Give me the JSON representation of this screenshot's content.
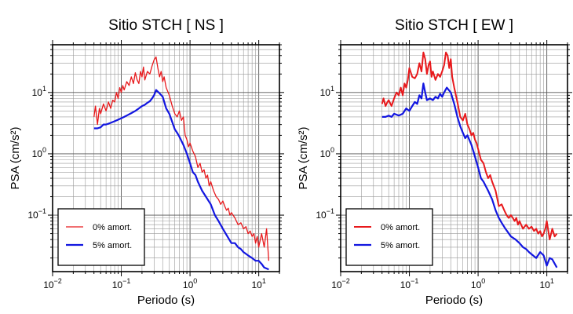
{
  "chart_data": [
    {
      "type": "line",
      "title": "Sitio STCH [ NS ]",
      "xlabel": "Periodo (s)",
      "ylabel": "PSA (cm/s²)",
      "xscale": "log",
      "yscale": "log",
      "xlim": [
        0.01,
        20
      ],
      "ylim": [
        0.012,
        60
      ],
      "grid": true,
      "legend_position": "bottom-left",
      "xticks": [
        {
          "value": 0.01,
          "base": "10",
          "exp": "−2"
        },
        {
          "value": 0.1,
          "base": "10",
          "exp": "−1"
        },
        {
          "value": 1,
          "base": "10",
          "exp": "0"
        },
        {
          "value": 10,
          "base": "10",
          "exp": "1"
        }
      ],
      "yticks": [
        {
          "value": 0.1,
          "base": "10",
          "exp": "−1"
        },
        {
          "value": 1,
          "base": "10",
          "exp": "0"
        },
        {
          "value": 10,
          "base": "10",
          "exp": "1"
        }
      ],
      "series": [
        {
          "name": "0% amort.",
          "color": "#e8191c",
          "width": 1.3,
          "x": [
            0.04,
            0.042,
            0.045,
            0.048,
            0.05,
            0.055,
            0.06,
            0.065,
            0.07,
            0.075,
            0.08,
            0.085,
            0.09,
            0.095,
            0.1,
            0.105,
            0.11,
            0.12,
            0.13,
            0.14,
            0.15,
            0.16,
            0.17,
            0.18,
            0.19,
            0.2,
            0.21,
            0.22,
            0.24,
            0.26,
            0.28,
            0.3,
            0.32,
            0.34,
            0.36,
            0.38,
            0.4,
            0.42,
            0.45,
            0.5,
            0.55,
            0.6,
            0.65,
            0.7,
            0.75,
            0.8,
            0.85,
            0.9,
            0.95,
            1.0,
            1.1,
            1.2,
            1.3,
            1.4,
            1.5,
            1.6,
            1.7,
            1.8,
            1.9,
            2.0,
            2.2,
            2.4,
            2.6,
            2.8,
            3.0,
            3.2,
            3.4,
            3.6,
            3.8,
            4.0,
            4.5,
            5.0,
            5.5,
            6.0,
            6.5,
            7.0,
            7.5,
            8.0,
            8.5,
            9.0,
            9.5,
            10.0,
            11.0,
            12.0,
            13.0,
            14.0
          ],
          "y": [
            4.0,
            6.0,
            3.0,
            5.5,
            4.5,
            6.5,
            5.0,
            7.0,
            5.5,
            7.5,
            7.0,
            10.0,
            8.0,
            12.0,
            10.0,
            13.0,
            11.0,
            15.0,
            13.0,
            18.0,
            14.0,
            21.0,
            16.0,
            14.0,
            22.0,
            18.0,
            26.0,
            16.0,
            22.0,
            20.0,
            27.0,
            34.0,
            38.0,
            25.0,
            18.0,
            22.0,
            15.0,
            18.0,
            12.0,
            9.0,
            6.0,
            4.5,
            4.0,
            5.0,
            3.5,
            4.0,
            2.0,
            1.7,
            1.3,
            1.5,
            1.1,
            0.9,
            0.6,
            0.7,
            0.5,
            0.55,
            0.4,
            0.45,
            0.3,
            0.35,
            0.25,
            0.2,
            0.18,
            0.15,
            0.17,
            0.14,
            0.12,
            0.13,
            0.1,
            0.11,
            0.09,
            0.07,
            0.075,
            0.06,
            0.065,
            0.05,
            0.055,
            0.045,
            0.05,
            0.035,
            0.045,
            0.03,
            0.05,
            0.03,
            0.06,
            0.018
          ]
        },
        {
          "name": "5% amort.",
          "color": "#1216e0",
          "width": 2.2,
          "x": [
            0.04,
            0.045,
            0.05,
            0.055,
            0.06,
            0.07,
            0.08,
            0.09,
            0.1,
            0.11,
            0.12,
            0.14,
            0.16,
            0.18,
            0.2,
            0.22,
            0.24,
            0.26,
            0.28,
            0.3,
            0.32,
            0.35,
            0.4,
            0.45,
            0.5,
            0.55,
            0.6,
            0.65,
            0.7,
            0.8,
            0.9,
            1.0,
            1.1,
            1.2,
            1.3,
            1.5,
            1.7,
            2.0,
            2.3,
            2.6,
            3.0,
            3.5,
            4.0,
            4.5,
            5.0,
            5.5,
            6.0,
            7.0,
            8.0,
            9.0,
            10.0,
            11.0,
            12.0,
            14.0
          ],
          "y": [
            2.6,
            2.6,
            2.7,
            3.0,
            3.0,
            3.2,
            3.4,
            3.6,
            3.8,
            4.0,
            4.2,
            4.6,
            5.0,
            5.5,
            6.0,
            6.3,
            6.8,
            7.2,
            8.0,
            9.0,
            11.0,
            10.0,
            8.5,
            5.5,
            4.5,
            3.3,
            2.5,
            2.2,
            1.9,
            1.4,
            1.0,
            0.7,
            0.5,
            0.45,
            0.35,
            0.25,
            0.2,
            0.15,
            0.1,
            0.08,
            0.06,
            0.045,
            0.035,
            0.035,
            0.03,
            0.028,
            0.025,
            0.022,
            0.02,
            0.018,
            0.018,
            0.016,
            0.014,
            0.013
          ]
        }
      ]
    },
    {
      "type": "line",
      "title": "Sitio STCH [ EW ]",
      "xlabel": "Periodo (s)",
      "ylabel": "PSA (cm/s²)",
      "xscale": "log",
      "yscale": "log",
      "xlim": [
        0.01,
        20
      ],
      "ylim": [
        0.012,
        60
      ],
      "grid": true,
      "legend_position": "bottom-left",
      "xticks": [
        {
          "value": 0.01,
          "base": "10",
          "exp": "−2"
        },
        {
          "value": 0.1,
          "base": "10",
          "exp": "−1"
        },
        {
          "value": 1,
          "base": "10",
          "exp": "0"
        },
        {
          "value": 10,
          "base": "10",
          "exp": "1"
        }
      ],
      "yticks": [
        {
          "value": 0.1,
          "base": "10",
          "exp": "−1"
        },
        {
          "value": 1,
          "base": "10",
          "exp": "0"
        },
        {
          "value": 10,
          "base": "10",
          "exp": "1"
        }
      ],
      "series": [
        {
          "name": "0% amort.",
          "color": "#e8191c",
          "width": 2.0,
          "x": [
            0.04,
            0.042,
            0.045,
            0.048,
            0.05,
            0.055,
            0.06,
            0.065,
            0.07,
            0.075,
            0.08,
            0.085,
            0.09,
            0.095,
            0.1,
            0.11,
            0.12,
            0.13,
            0.14,
            0.15,
            0.16,
            0.17,
            0.18,
            0.19,
            0.2,
            0.21,
            0.22,
            0.24,
            0.26,
            0.28,
            0.3,
            0.32,
            0.34,
            0.36,
            0.38,
            0.4,
            0.42,
            0.45,
            0.5,
            0.55,
            0.6,
            0.65,
            0.7,
            0.75,
            0.8,
            0.85,
            0.9,
            0.95,
            1.0,
            1.1,
            1.2,
            1.3,
            1.4,
            1.5,
            1.6,
            1.8,
            2.0,
            2.2,
            2.4,
            2.6,
            2.8,
            3.0,
            3.2,
            3.4,
            3.6,
            3.8,
            4.0,
            4.5,
            5.0,
            5.5,
            6.0,
            6.5,
            7.0,
            7.5,
            8.0,
            8.5,
            9.0,
            9.5,
            10.0,
            11.0,
            12.0,
            13.0,
            14.0
          ],
          "y": [
            6.5,
            8.0,
            6.0,
            7.0,
            7.5,
            6.0,
            8.0,
            10.0,
            9.0,
            12.0,
            9.0,
            14.0,
            12.0,
            16.0,
            25.0,
            18.0,
            17.0,
            20.0,
            30.0,
            22.0,
            45.0,
            35.0,
            20.0,
            28.0,
            32.0,
            18.0,
            22.0,
            16.0,
            20.0,
            18.0,
            22.0,
            28.0,
            45.0,
            40.0,
            25.0,
            35.0,
            18.0,
            12.0,
            7.0,
            4.0,
            3.5,
            4.5,
            3.0,
            2.5,
            2.0,
            2.2,
            1.7,
            1.5,
            1.2,
            0.8,
            0.7,
            0.5,
            0.4,
            0.45,
            0.35,
            0.25,
            0.14,
            0.15,
            0.12,
            0.1,
            0.09,
            0.1,
            0.09,
            0.08,
            0.09,
            0.07,
            0.08,
            0.06,
            0.07,
            0.06,
            0.065,
            0.055,
            0.06,
            0.05,
            0.055,
            0.045,
            0.05,
            0.06,
            0.08,
            0.04,
            0.06,
            0.045,
            0.05
          ]
        },
        {
          "name": "5% amort.",
          "color": "#1216e0",
          "width": 2.2,
          "x": [
            0.04,
            0.045,
            0.05,
            0.055,
            0.06,
            0.07,
            0.08,
            0.09,
            0.1,
            0.11,
            0.12,
            0.13,
            0.14,
            0.15,
            0.16,
            0.17,
            0.18,
            0.2,
            0.22,
            0.24,
            0.26,
            0.28,
            0.3,
            0.32,
            0.35,
            0.4,
            0.45,
            0.5,
            0.55,
            0.6,
            0.65,
            0.7,
            0.8,
            0.9,
            1.0,
            1.1,
            1.2,
            1.4,
            1.6,
            1.8,
            2.0,
            2.2,
            2.5,
            3.0,
            3.5,
            4.0,
            4.5,
            5.0,
            5.5,
            6.0,
            7.0,
            8.0,
            9.0,
            10.0,
            11.0,
            12.0,
            14.0
          ],
          "y": [
            4.0,
            4.0,
            4.2,
            4.0,
            4.5,
            4.2,
            4.5,
            5.5,
            5.0,
            6.0,
            7.0,
            6.5,
            9.0,
            8.0,
            14.0,
            10.0,
            7.5,
            8.0,
            7.5,
            8.5,
            8.0,
            9.5,
            8.5,
            10.0,
            12.0,
            10.0,
            6.5,
            4.0,
            2.8,
            2.2,
            1.8,
            2.0,
            1.4,
            0.9,
            0.6,
            0.4,
            0.35,
            0.25,
            0.18,
            0.12,
            0.09,
            0.075,
            0.06,
            0.045,
            0.04,
            0.035,
            0.03,
            0.028,
            0.025,
            0.023,
            0.02,
            0.025,
            0.022,
            0.015,
            0.02,
            0.019,
            0.014
          ]
        }
      ]
    }
  ]
}
